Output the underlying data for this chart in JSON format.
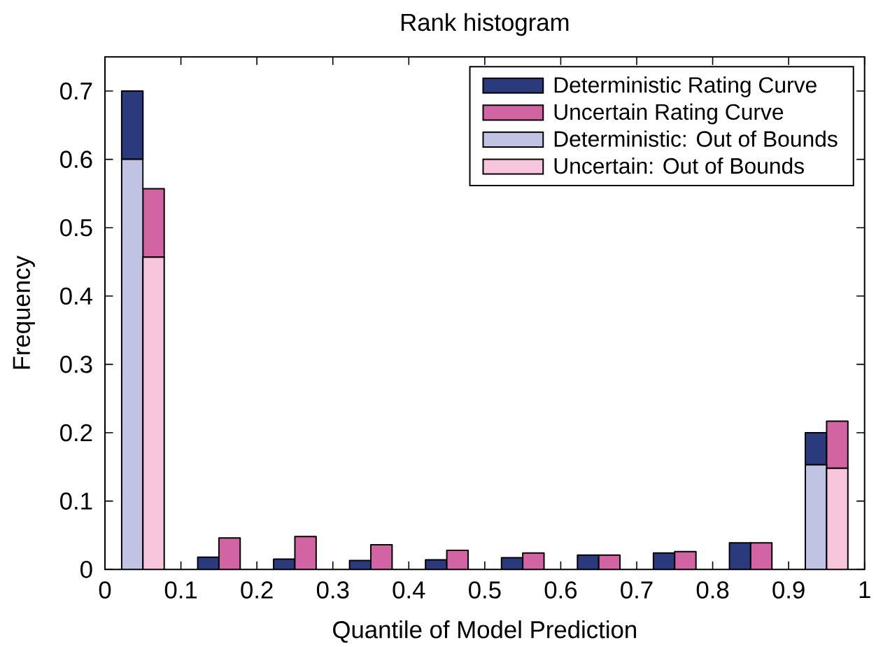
{
  "chart_data": {
    "type": "bar",
    "title": "Rank histogram",
    "xlabel": "Quantile of Model Prediction",
    "ylabel": "Frequency",
    "series": [
      {
        "name": "Deterministic Rating Curve",
        "color": "#2a3a7c",
        "x": [
          0.036,
          0.136,
          0.236,
          0.336,
          0.436,
          0.536,
          0.636,
          0.736,
          0.836,
          0.936
        ],
        "values": [
          0.1,
          0.018,
          0.015,
          0.013,
          0.014,
          0.017,
          0.021,
          0.024,
          0.039,
          0.047
        ],
        "base": [
          0.6,
          0,
          0,
          0,
          0,
          0,
          0,
          0,
          0,
          0.153
        ]
      },
      {
        "name": "Uncertain Rating Curve",
        "color": "#d264a4",
        "x": [
          0.064,
          0.164,
          0.264,
          0.364,
          0.464,
          0.564,
          0.664,
          0.764,
          0.864,
          0.964
        ],
        "values": [
          0.1,
          0.046,
          0.048,
          0.036,
          0.028,
          0.024,
          0.021,
          0.026,
          0.039,
          0.069
        ],
        "base": [
          0.457,
          0,
          0,
          0,
          0,
          0,
          0,
          0,
          0,
          0.148
        ]
      },
      {
        "name": "Deterministic: Out of Bounds",
        "color": "#c0c3e3",
        "x": [
          0.036,
          0.936
        ],
        "values": [
          0.6,
          0.153
        ]
      },
      {
        "name": "Uncertain: Out of Bounds",
        "color": "#f7c6dc",
        "x": [
          0.064,
          0.964
        ],
        "values": [
          0.457,
          0.148
        ]
      }
    ],
    "xlim": [
      0,
      1
    ],
    "ylim": [
      0,
      0.75
    ],
    "xticks": [
      0,
      0.1,
      0.2,
      0.3,
      0.4,
      0.5,
      0.6,
      0.7,
      0.8,
      0.9,
      1
    ],
    "yticks": [
      0,
      0.1,
      0.2,
      0.3,
      0.4,
      0.5,
      0.6,
      0.7
    ],
    "legend": "top right"
  }
}
